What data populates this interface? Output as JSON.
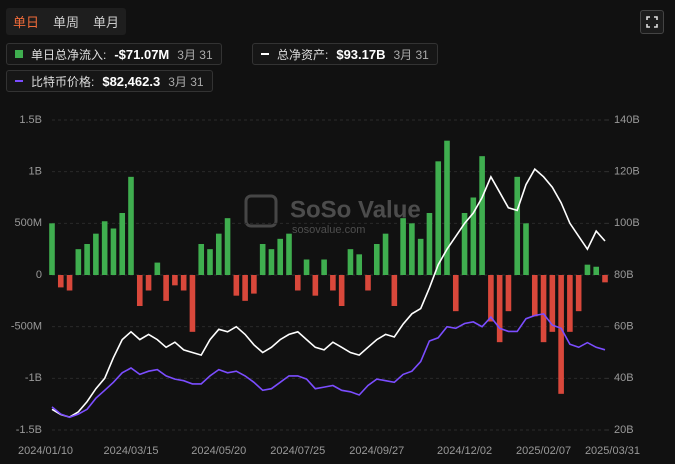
{
  "tabs": [
    "单日",
    "单周",
    "单月"
  ],
  "active_tab": 0,
  "watermark": {
    "title": "SoSo Value",
    "url": "sosovalue.com"
  },
  "chart_data": {
    "type": "bar",
    "categories": [
      "2024/01/10",
      null,
      null,
      null,
      null,
      null,
      null,
      null,
      null,
      "2024/03/15",
      null,
      null,
      null,
      null,
      null,
      null,
      null,
      null,
      null,
      "2024/05/20",
      null,
      null,
      null,
      null,
      null,
      null,
      null,
      null,
      "2024/07/25",
      null,
      null,
      null,
      null,
      null,
      null,
      null,
      null,
      "2024/09/27",
      null,
      null,
      null,
      null,
      null,
      null,
      null,
      null,
      null,
      "2024/12/02",
      null,
      null,
      null,
      null,
      null,
      null,
      null,
      null,
      "2025/02/07",
      null,
      null,
      null,
      null,
      null,
      null,
      "2025/03/31"
    ],
    "series": [
      {
        "name": "单日总净流入:",
        "type": "bar",
        "color": "#3fae4f",
        "negative_color": "#d9483b",
        "latest_label": "-$71.07M",
        "latest_date": "3月 31",
        "values": [
          500,
          -120,
          -150,
          250,
          300,
          400,
          520,
          450,
          600,
          950,
          -300,
          -150,
          120,
          -250,
          -100,
          -150,
          -550,
          300,
          250,
          400,
          550,
          -200,
          -250,
          -180,
          300,
          250,
          350,
          400,
          -150,
          150,
          -200,
          150,
          -150,
          -300,
          250,
          200,
          -150,
          300,
          400,
          -300,
          550,
          500,
          350,
          600,
          1100,
          1300,
          -350,
          600,
          750,
          1150,
          -450,
          -650,
          -350,
          950,
          500,
          -400,
          -650,
          -550,
          -1150,
          -550,
          -350,
          100,
          80,
          -71.07
        ]
      },
      {
        "name": "总净资产:",
        "type": "line",
        "axis": "y2",
        "color": "#ffffff",
        "latest_label": "$93.17B",
        "latest_date": "3月 31",
        "values": [
          28,
          26,
          25,
          27,
          31,
          36,
          40,
          48,
          55,
          58,
          55,
          57,
          55,
          52,
          54,
          51,
          50,
          49,
          55,
          59,
          58,
          60,
          57,
          53,
          50,
          52,
          55,
          57,
          58,
          55,
          52,
          51,
          54,
          52,
          50,
          49,
          52,
          55,
          57,
          56,
          61,
          65,
          67,
          75,
          84,
          90,
          95,
          100,
          104,
          110,
          118,
          112,
          106,
          105,
          115,
          121,
          118,
          114,
          108,
          100,
          95,
          90,
          97,
          93.17
        ]
      },
      {
        "name": "比特币价格:",
        "type": "line",
        "axis": "y3",
        "color": "#7b4dff",
        "latest_label": "$82,462.3",
        "latest_date": "3月 31",
        "values": [
          46500,
          42000,
          40000,
          42000,
          45000,
          52000,
          57000,
          62000,
          68000,
          71000,
          67000,
          69000,
          70000,
          66000,
          64000,
          63000,
          61000,
          61000,
          66000,
          70000,
          68000,
          69000,
          66000,
          62000,
          57000,
          58000,
          62000,
          66000,
          66000,
          64000,
          58000,
          59000,
          60000,
          57000,
          56000,
          54000,
          60000,
          64000,
          63000,
          62000,
          67000,
          69000,
          75000,
          88000,
          90000,
          97000,
          96000,
          99000,
          100000,
          97000,
          103000,
          96000,
          94000,
          94000,
          102000,
          104000,
          105000,
          98000,
          96000,
          86000,
          84000,
          87000,
          84000,
          82462.3
        ]
      }
    ],
    "ylim": [
      -1500,
      1500
    ],
    "yticks": [
      {
        "value": -1500,
        "label": "-1.5B"
      },
      {
        "value": -1000,
        "label": "-1B"
      },
      {
        "value": -500,
        "label": "-500M"
      },
      0,
      {
        "value": 500,
        "label": "500M"
      },
      {
        "value": 1000,
        "label": "1B"
      },
      {
        "value": 1500,
        "label": "1.5B"
      }
    ],
    "y2lim": [
      20,
      140
    ],
    "y2ticks": [
      {
        "value": 20,
        "label": "20B"
      },
      {
        "value": 40,
        "label": "40B"
      },
      {
        "value": 60,
        "label": "60B"
      },
      {
        "value": 80,
        "label": "80B"
      },
      {
        "value": 100,
        "label": "100B"
      },
      {
        "value": 120,
        "label": "120B"
      },
      {
        "value": 140,
        "label": "140B"
      }
    ],
    "y3lim": [
      32000,
      227000
    ],
    "grid": true
  }
}
